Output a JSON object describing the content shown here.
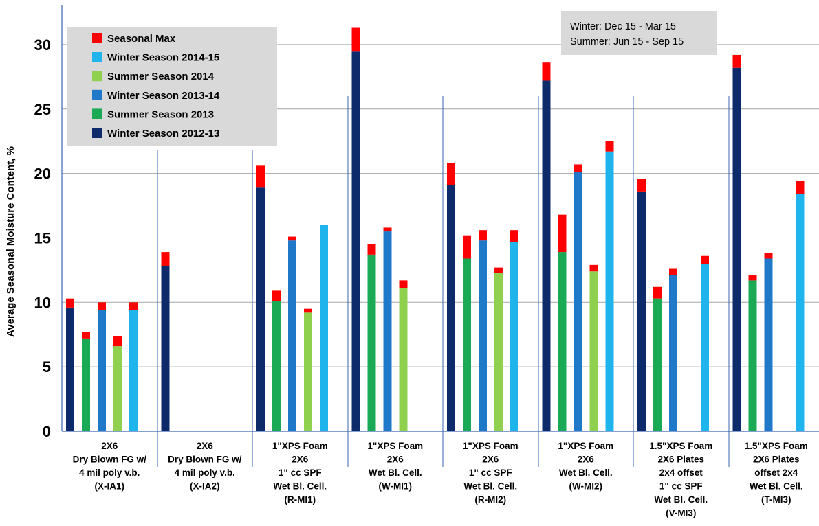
{
  "chart_data": {
    "type": "bar",
    "ylabel": "Average Seasonal Moisture Content, %",
    "xlabel": "",
    "ylim": [
      0,
      32
    ],
    "yticks": [
      "0",
      "5",
      "10",
      "15",
      "20",
      "25",
      "30"
    ],
    "grid": true,
    "legend_placement": "top-left",
    "note_lines": [
      "Winter: Dec 15 - Mar 15",
      "Summer: Jun 15 - Sep 15"
    ],
    "legend": [
      {
        "name": "Seasonal Max",
        "color": "#ff0000"
      },
      {
        "name": "Winter Season 2014-15",
        "color": "#1fb4ec"
      },
      {
        "name": "Summer Season 2014",
        "color": "#8fd14f"
      },
      {
        "name": "Winter Season 2013-14",
        "color": "#1f78c8"
      },
      {
        "name": "Summer Season 2013",
        "color": "#1aaa55"
      },
      {
        "name": "Winter Season 2012-13",
        "color": "#0d2a6b"
      }
    ],
    "series_order": [
      "Winter Season 2012-13",
      "Summer Season 2013",
      "Winter Season 2013-14",
      "Summer Season 2014",
      "Winter Season 2014-15"
    ],
    "series_colors": [
      "#0d2a6b",
      "#1aaa55",
      "#1f78c8",
      "#8fd14f",
      "#1fb4ec"
    ],
    "max_color": "#ff0000",
    "categories": [
      {
        "label_lines": [
          "2X6",
          "Dry Blown FG w/",
          "4 mil poly v.b.",
          "(X-IA1)"
        ],
        "bars": [
          {
            "value": 9.6,
            "max": 10.3
          },
          {
            "value": 7.2,
            "max": 7.7
          },
          {
            "value": 9.4,
            "max": 10.0
          },
          {
            "value": 6.6,
            "max": 7.4
          },
          {
            "value": 9.4,
            "max": 10.0
          }
        ]
      },
      {
        "label_lines": [
          "2X6",
          "Dry Blown FG w/",
          "4 mil poly v.b.",
          "(X-IA2)"
        ],
        "bars": [
          {
            "value": 12.8,
            "max": 13.9
          },
          null,
          null,
          null,
          null
        ]
      },
      {
        "label_lines": [
          "1\"XPS  Foam",
          "2X6",
          "1\" cc SPF",
          "Wet Bl. Cell.",
          "(R-MI1)"
        ],
        "bars": [
          {
            "value": 18.9,
            "max": 20.6
          },
          {
            "value": 10.1,
            "max": 10.9
          },
          {
            "value": 14.8,
            "max": 15.1
          },
          {
            "value": 9.2,
            "max": 9.5
          },
          {
            "value": 16.0,
            "max": 16.0
          }
        ]
      },
      {
        "label_lines": [
          "1\"XPS  Foam",
          "2X6",
          "Wet Bl. Cell.",
          "(W-MI1)"
        ],
        "bars": [
          {
            "value": 29.5,
            "max": 31.3
          },
          {
            "value": 13.7,
            "max": 14.5
          },
          {
            "value": 15.5,
            "max": 15.8
          },
          {
            "value": 11.1,
            "max": 11.7
          },
          null
        ]
      },
      {
        "label_lines": [
          "1\"XPS  Foam",
          "2X6",
          "1\" cc SPF",
          "Wet Bl. Cell.",
          "(R-MI2)"
        ],
        "bars": [
          {
            "value": 19.1,
            "max": 20.8
          },
          {
            "value": 13.4,
            "max": 15.2
          },
          {
            "value": 14.8,
            "max": 15.6
          },
          {
            "value": 12.3,
            "max": 12.7
          },
          {
            "value": 14.7,
            "max": 15.6
          }
        ]
      },
      {
        "label_lines": [
          "1\"XPS  Foam",
          "2X6",
          "Wet Bl. Cell.",
          "(W-MI2)"
        ],
        "bars": [
          {
            "value": 27.2,
            "max": 28.6
          },
          {
            "value": 13.9,
            "max": 16.8
          },
          {
            "value": 20.1,
            "max": 20.7
          },
          {
            "value": 12.4,
            "max": 12.9
          },
          {
            "value": 21.7,
            "max": 22.5
          }
        ]
      },
      {
        "label_lines": [
          "1.5\"XPS  Foam",
          "2X6 Plates",
          "2x4 offset",
          "1\" cc SPF",
          "Wet Bl. Cell.",
          "(V-MI3)"
        ],
        "bars": [
          {
            "value": 18.6,
            "max": 19.6
          },
          {
            "value": 10.3,
            "max": 11.2
          },
          {
            "value": 12.1,
            "max": 12.6
          },
          null,
          {
            "value": 13.0,
            "max": 13.6
          }
        ]
      },
      {
        "label_lines": [
          "1.5\"XPS  Foam",
          "2X6 Plates",
          "offset 2x4",
          "Wet Bl. Cell.",
          "(T-MI3)"
        ],
        "bars": [
          {
            "value": 28.2,
            "max": 29.2
          },
          {
            "value": 11.7,
            "max": 12.1
          },
          {
            "value": 13.4,
            "max": 13.8
          },
          null,
          {
            "value": 18.4,
            "max": 19.4
          }
        ]
      }
    ]
  }
}
